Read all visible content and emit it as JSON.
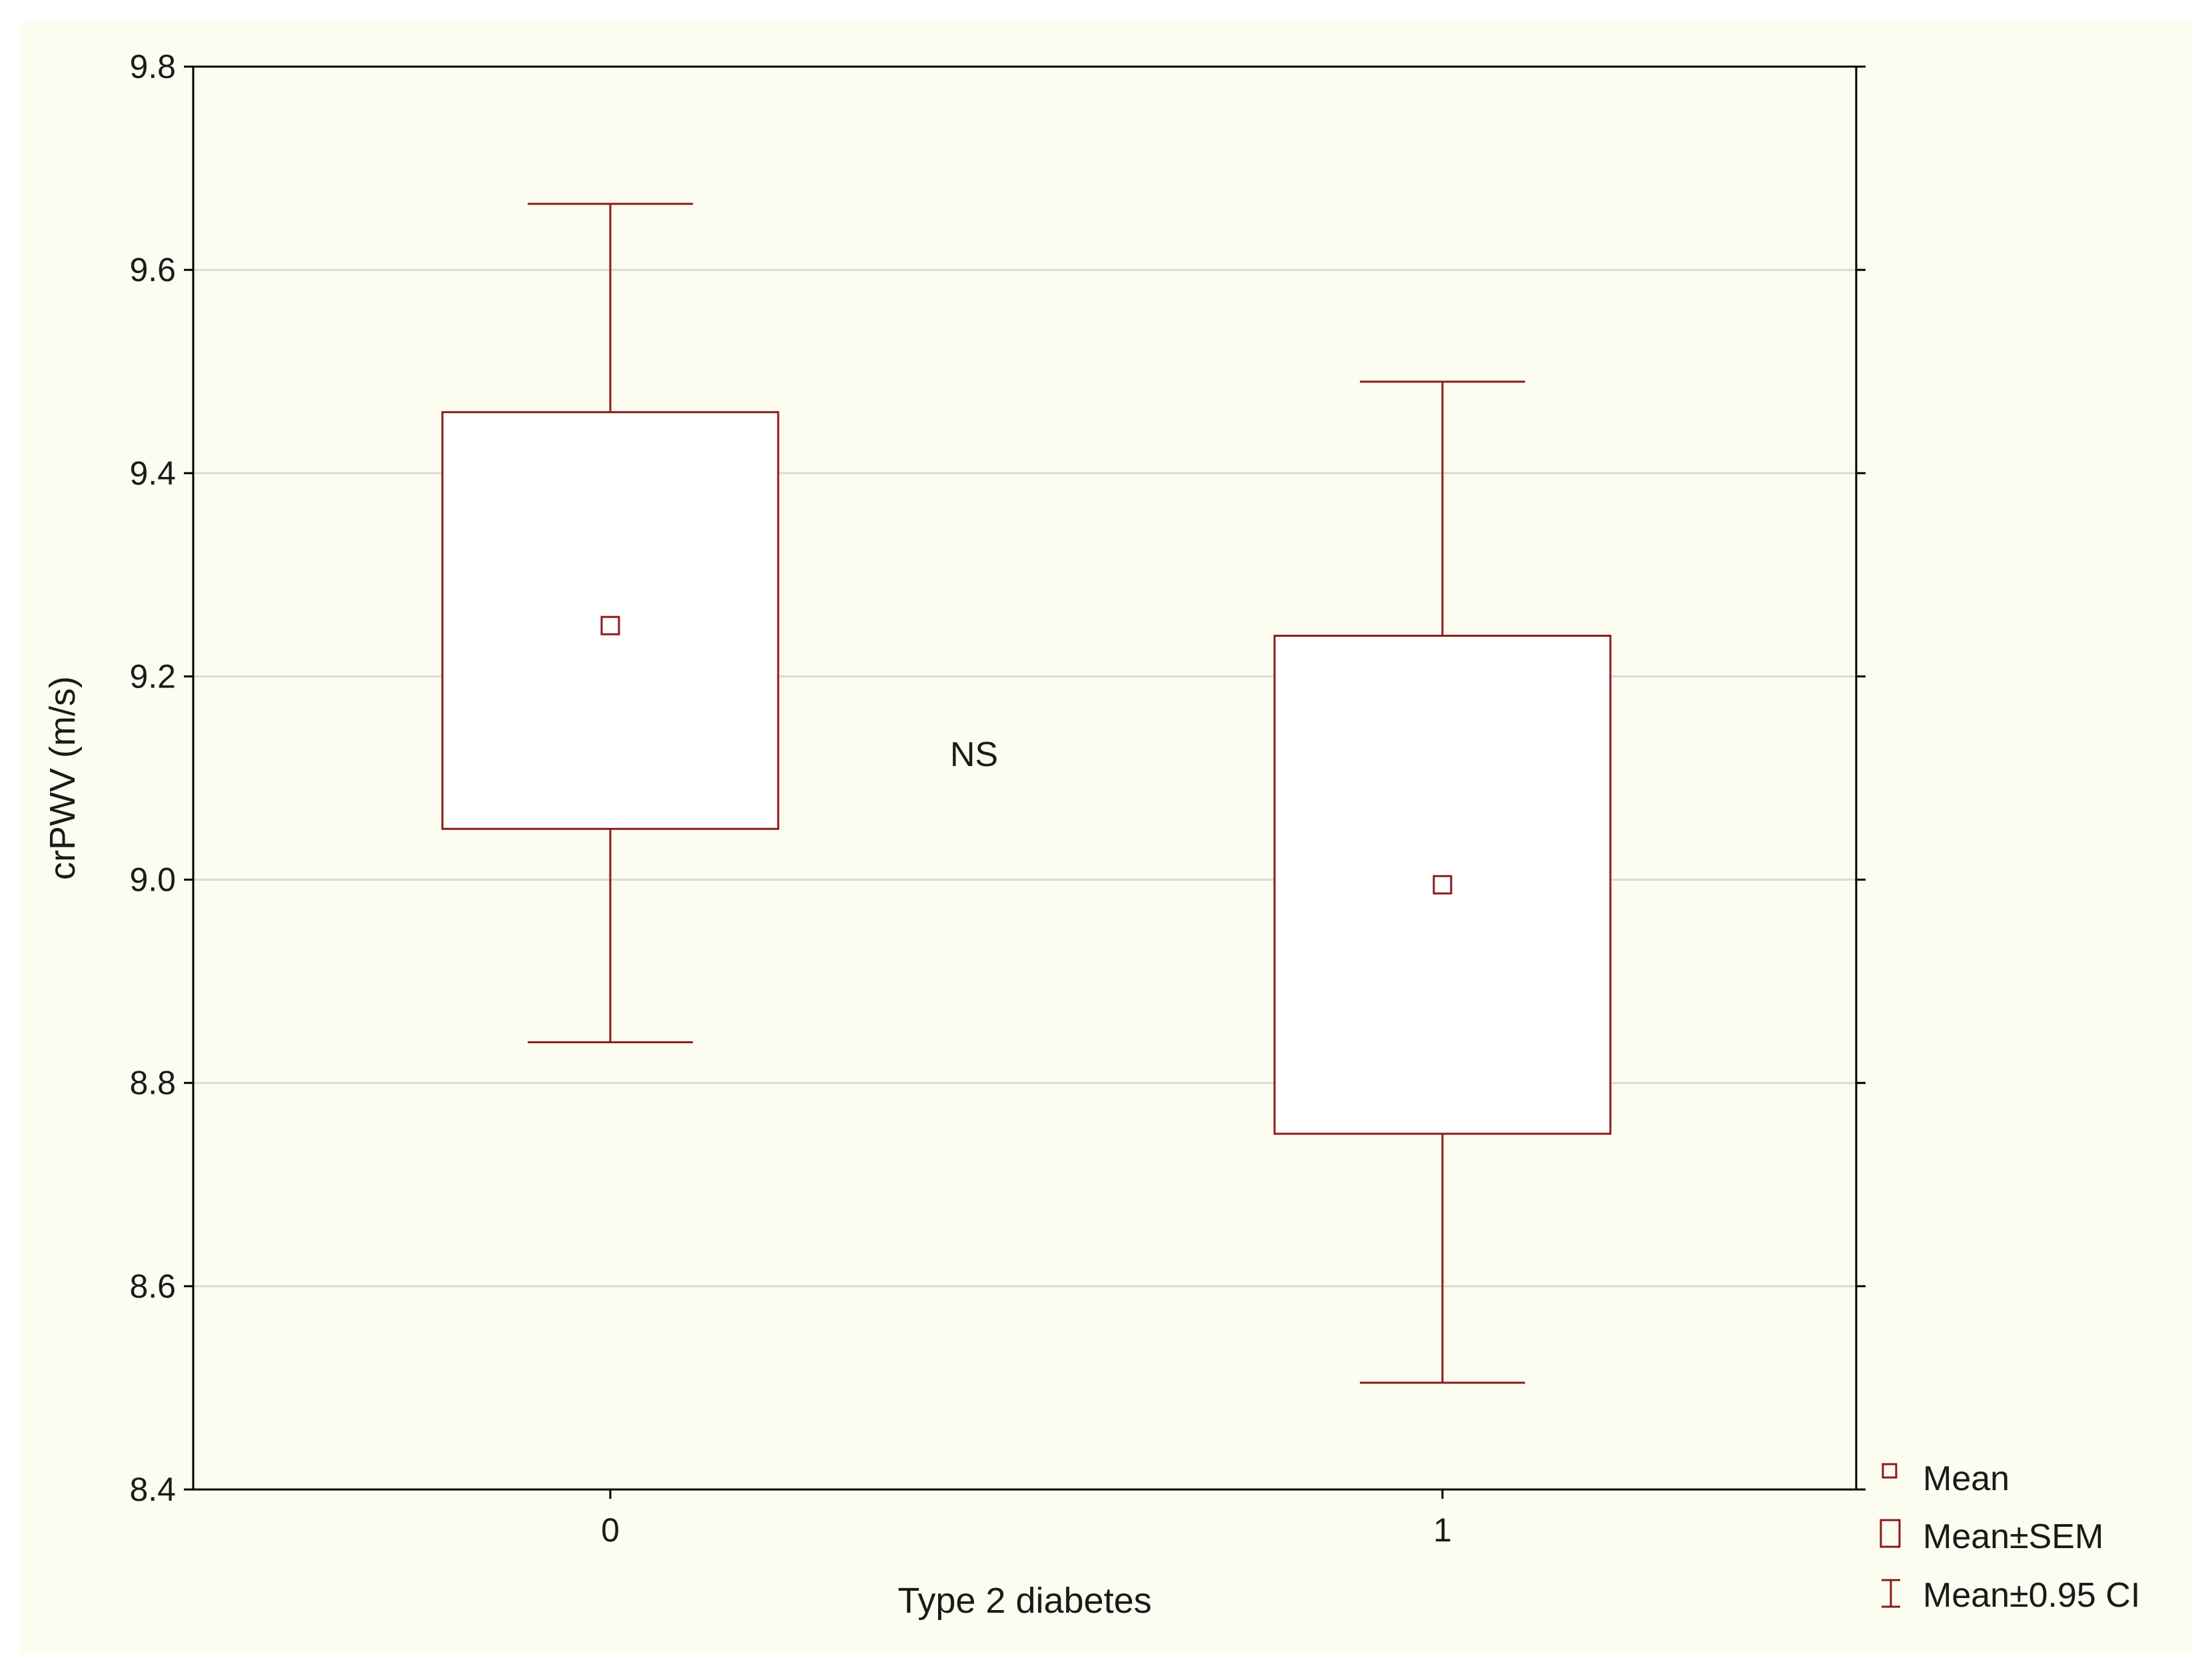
{
  "chart_data": {
    "type": "box",
    "title": "",
    "xlabel": "Type 2 diabetes",
    "ylabel": "crPWV (m/s)",
    "ylim": [
      8.4,
      9.8
    ],
    "yticks": [
      "9.8",
      "9.6",
      "9.4",
      "9.2",
      "9.0",
      "8.8",
      "8.6",
      "8.4"
    ],
    "ytick_values": [
      9.8,
      9.6,
      9.4,
      9.2,
      9.0,
      8.8,
      8.6,
      8.4
    ],
    "grid": true,
    "categories": [
      "0",
      "1"
    ],
    "groups": [
      {
        "category": "0",
        "mean": 9.25,
        "sem_low": 9.05,
        "sem_high": 9.46,
        "ci_low": 8.84,
        "ci_high": 9.665
      },
      {
        "category": "1",
        "mean": 8.995,
        "sem_low": 8.75,
        "sem_high": 9.24,
        "ci_low": 8.505,
        "ci_high": 9.49
      }
    ],
    "annotation": "NS",
    "legend_position": "bottom-right",
    "legend": [
      "Mean",
      "Mean±SEM",
      "Mean±0.95 CI"
    ],
    "color": "#8b1a1a"
  }
}
